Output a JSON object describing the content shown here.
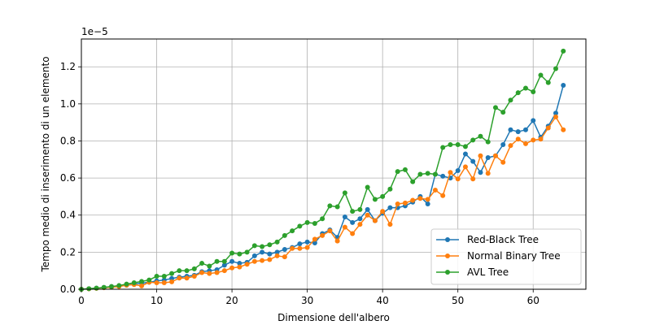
{
  "chart_data": {
    "type": "line",
    "title": "",
    "xlabel": "Dimensione dell'albero",
    "ylabel": "Tempo medio di inserimento di un elemento",
    "y_offset_label": "1e−5",
    "y_scale_exponent": -5,
    "xlim": [
      0,
      67
    ],
    "ylim": [
      0,
      1.35
    ],
    "xticks": [
      0,
      10,
      20,
      30,
      40,
      50,
      60
    ],
    "xtick_labels": [
      "0",
      "10",
      "20",
      "30",
      "40",
      "50",
      "60"
    ],
    "yticks": [
      0.0,
      0.2,
      0.4,
      0.6,
      0.8,
      1.0,
      1.2
    ],
    "ytick_labels": [
      "0.0",
      "0.2",
      "0.4",
      "0.6",
      "0.8",
      "1.0",
      "1.2"
    ],
    "grid": true,
    "legend_position": "lower-right",
    "x": [
      0,
      1,
      2,
      3,
      4,
      5,
      6,
      7,
      8,
      9,
      10,
      11,
      12,
      13,
      14,
      15,
      16,
      17,
      18,
      19,
      20,
      21,
      22,
      23,
      24,
      25,
      26,
      27,
      28,
      29,
      30,
      31,
      32,
      33,
      34,
      35,
      36,
      37,
      38,
      39,
      40,
      41,
      42,
      43,
      44,
      45,
      46,
      47,
      48,
      49,
      50,
      51,
      52,
      53,
      54,
      55,
      56,
      57,
      58,
      59,
      60,
      61,
      62,
      63,
      64
    ],
    "series": [
      {
        "name": "Red-Black Tree",
        "color": "#1f77b4",
        "values": [
          0.0,
          0.003,
          0.006,
          0.01,
          0.014,
          0.018,
          0.022,
          0.028,
          0.033,
          0.038,
          0.045,
          0.05,
          0.058,
          0.065,
          0.07,
          0.075,
          0.095,
          0.1,
          0.105,
          0.13,
          0.15,
          0.14,
          0.145,
          0.18,
          0.2,
          0.19,
          0.2,
          0.215,
          0.225,
          0.245,
          0.255,
          0.25,
          0.3,
          0.32,
          0.28,
          0.39,
          0.36,
          0.38,
          0.43,
          0.37,
          0.41,
          0.44,
          0.44,
          0.45,
          0.47,
          0.5,
          0.46,
          0.62,
          0.61,
          0.6,
          0.64,
          0.73,
          0.69,
          0.63,
          0.71,
          0.72,
          0.78,
          0.86,
          0.85,
          0.86,
          0.91,
          0.82,
          0.88,
          0.95,
          1.1
        ]
      },
      {
        "name": "Normal Binary Tree",
        "color": "#ff7f0e",
        "values": [
          0.0,
          0.002,
          0.005,
          0.008,
          0.011,
          0.015,
          0.022,
          0.025,
          0.018,
          0.038,
          0.035,
          0.035,
          0.04,
          0.06,
          0.06,
          0.07,
          0.09,
          0.085,
          0.09,
          0.1,
          0.115,
          0.12,
          0.135,
          0.15,
          0.155,
          0.16,
          0.18,
          0.175,
          0.22,
          0.22,
          0.225,
          0.27,
          0.29,
          0.315,
          0.26,
          0.335,
          0.3,
          0.35,
          0.4,
          0.37,
          0.42,
          0.35,
          0.46,
          0.465,
          0.48,
          0.49,
          0.485,
          0.535,
          0.505,
          0.63,
          0.595,
          0.66,
          0.595,
          0.72,
          0.625,
          0.72,
          0.685,
          0.775,
          0.81,
          0.785,
          0.805,
          0.81,
          0.87,
          0.93,
          0.86
        ]
      },
      {
        "name": "AVL Tree",
        "color": "#2ca02c",
        "values": [
          0.0,
          0.003,
          0.006,
          0.01,
          0.015,
          0.02,
          0.028,
          0.035,
          0.042,
          0.05,
          0.07,
          0.07,
          0.085,
          0.1,
          0.1,
          0.11,
          0.14,
          0.125,
          0.15,
          0.15,
          0.195,
          0.19,
          0.2,
          0.235,
          0.23,
          0.24,
          0.255,
          0.29,
          0.315,
          0.34,
          0.36,
          0.355,
          0.38,
          0.45,
          0.445,
          0.52,
          0.42,
          0.43,
          0.55,
          0.485,
          0.5,
          0.54,
          0.635,
          0.645,
          0.58,
          0.62,
          0.625,
          0.62,
          0.765,
          0.78,
          0.78,
          0.77,
          0.805,
          0.825,
          0.795,
          0.98,
          0.955,
          1.02,
          1.06,
          1.085,
          1.065,
          1.155,
          1.115,
          1.19,
          1.285
        ]
      }
    ]
  }
}
